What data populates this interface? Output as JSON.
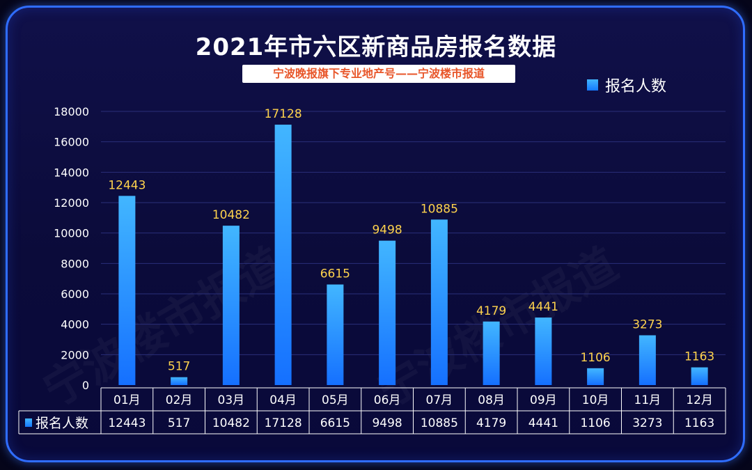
{
  "chart_data": {
    "type": "bar",
    "title": "2021年市六区新商品房报名数据",
    "subtitle": "宁波晚报旗下专业地产号——宁波楼市报道",
    "categories": [
      "01月",
      "02月",
      "03月",
      "04月",
      "05月",
      "06月",
      "07月",
      "08月",
      "09月",
      "10月",
      "11月",
      "12月"
    ],
    "series": [
      {
        "name": "报名人数",
        "values": [
          12443,
          517,
          10482,
          17128,
          6615,
          9498,
          10885,
          4179,
          4441,
          1106,
          3273,
          1163
        ]
      }
    ],
    "ylim": [
      0,
      18000
    ],
    "yticks": [
      "0",
      "2000",
      "4000",
      "6000",
      "8000",
      "10000",
      "12000",
      "14000",
      "16000",
      "18000"
    ],
    "data_labels": [
      "12443",
      "517",
      "10482",
      "17128",
      "6615",
      "9498",
      "10885",
      "4179",
      "4441",
      "1106",
      "3273",
      "1163"
    ],
    "table_row_label": "报名人数",
    "legend": "top-right",
    "grid": true,
    "colors": {
      "bar_top": "#42b6ff",
      "bar_bottom": "#1570ff",
      "label": "#ffd34d",
      "axis_text": "#ffffff",
      "grid": "#2a2f7a"
    }
  },
  "watermark": "宁波楼市报道"
}
